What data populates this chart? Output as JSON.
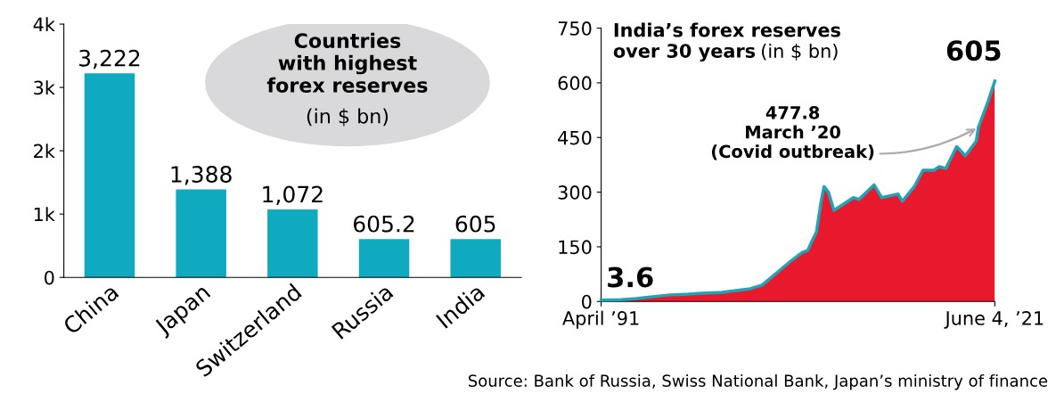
{
  "chart_data": [
    {
      "type": "bar",
      "title": "Countries\nwith highest\nforex reserves",
      "subtitle": "(in $ bn)",
      "categories": [
        "China",
        "Japan",
        "Switzerland",
        "Russia",
        "India"
      ],
      "values": [
        3222,
        1388,
        1072,
        605.2,
        605
      ],
      "color": "#10aac0",
      "value_labels": [
        "3,222",
        "1,388",
        "1,072",
        "605.2",
        "605"
      ],
      "ylim": [
        0,
        4000
      ],
      "yticks": [
        0,
        {
          "value": 1000,
          "label": "1k"
        },
        {
          "value": 2000,
          "label": "2k"
        },
        {
          "value": 3000,
          "label": "3k"
        },
        {
          "value": 4000,
          "label": "4k"
        }
      ],
      "grid": false
    },
    {
      "type": "area",
      "title": "India’s forex reserves\nover 30 years",
      "subtitle": "(in $ bn)",
      "x": [
        "1991-04",
        "1992-10",
        "1993-12",
        "1995-09",
        "1996-07",
        "1997-12",
        "1998-09",
        "2000-07",
        "2002-09",
        "2003-08",
        "2004-12",
        "2005-10",
        "2006-09",
        "2007-02",
        "2007-05",
        "2007-10",
        "2008-02",
        "2008-05",
        "2008-09",
        "2009-02",
        "2010-08",
        "2011-01",
        "2012-03",
        "2012-10",
        "2014-01",
        "2014-05",
        "2015-04",
        "2015-12",
        "2016-10",
        "2017-03",
        "2017-09",
        "2018-07",
        "2019-03",
        "2020-01",
        "2020-03",
        "2020-12",
        "2021-06-04"
      ],
      "series": [
        {
          "type": "area",
          "color": "#e8192c",
          "values": [
            3.6,
            5,
            8,
            15,
            18,
            20,
            22,
            25,
            35,
            45,
            85,
            110,
            135,
            140,
            160,
            190,
            270,
            315,
            300,
            250,
            285,
            280,
            320,
            285,
            295,
            275,
            315,
            360,
            360,
            370,
            365,
            425,
            400,
            440,
            477.8,
            550,
            605
          ]
        },
        {
          "type": "line",
          "color": "#1fa3b8",
          "values": [
            3.6,
            5,
            8,
            15,
            18,
            20,
            22,
            25,
            35,
            45,
            85,
            110,
            135,
            140,
            160,
            190,
            270,
            315,
            300,
            250,
            285,
            280,
            320,
            285,
            295,
            275,
            315,
            360,
            360,
            370,
            365,
            425,
            400,
            440,
            477.8,
            550,
            605
          ]
        }
      ],
      "xlim": [
        "1991-04",
        "2021-06-04"
      ],
      "xticks": [
        {
          "value": "1991-04",
          "label": "April ’91"
        },
        {
          "value": "2021-06-04",
          "label": "June 4, ’21"
        }
      ],
      "ylim": [
        0,
        750
      ],
      "yticks": [
        0,
        150,
        300,
        450,
        600,
        750
      ],
      "grid": false,
      "annotations": [
        {
          "text": "3.6",
          "x": "1991-04",
          "y": 3.6
        },
        {
          "text": "477.8\nMarch ’20\n(Covid outbreak)",
          "x": "2020-03",
          "y": 477.8
        },
        {
          "text": "605",
          "x": "2021-06-04",
          "y": 605
        },
        "Source: Bank of Russia, Swiss National Bank, Japan’s ministry of finance"
      ]
    }
  ]
}
